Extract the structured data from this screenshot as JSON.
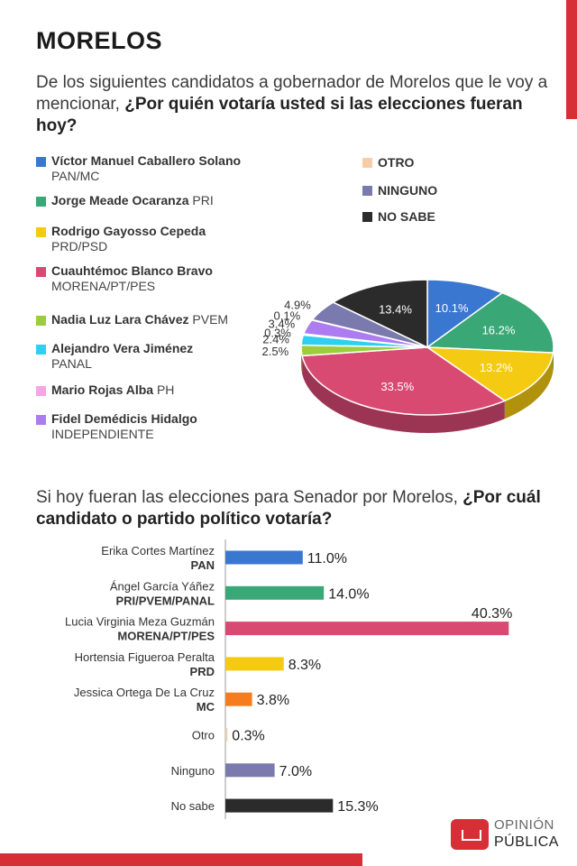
{
  "title": "MORELOS",
  "question1": {
    "pre": "De los siguientes candidatos a gobernador de Morelos que le voy a mencionar, ",
    "bold": "¿Por quién votaría usted si las elecciones fueran hoy?"
  },
  "question2": {
    "pre": "Si hoy fueran las elecciones para Senador por Morelos, ",
    "bold": "¿Por cuál candidato o partido político votaría?"
  },
  "legend_left": [
    {
      "name": "Víctor Manuel Caballero Solano",
      "party": "PAN/MC",
      "color": "#3a77d0",
      "two_line": true
    },
    {
      "name": "Jorge Meade Ocaranza",
      "party": "PRI",
      "color": "#3aa776",
      "two_line": false
    },
    {
      "name": "Rodrigo Gayosso Cepeda",
      "party": "PRD/PSD",
      "color": "#f4cb12",
      "two_line": true
    },
    {
      "name": "Cuauhtémoc Blanco Bravo",
      "party": "MORENA/PT/PES",
      "color": "#d94a73",
      "two_line": true
    },
    {
      "name": "Nadia Luz Lara Chávez",
      "party": "PVEM",
      "color": "#9ccd3c",
      "two_line": false
    },
    {
      "name": "Alejandro Vera Jiménez",
      "party": "PANAL",
      "color": "#2fd0ef",
      "two_line": true
    },
    {
      "name": "Mario Rojas Alba",
      "party": "PH",
      "color": "#f5a6e6",
      "two_line": false
    },
    {
      "name": "Fidel Demédicis Hidalgo",
      "party": "INDEPENDIENTE",
      "color": "#ad7cf0",
      "two_line": true
    }
  ],
  "legend_right": [
    {
      "name": "OTRO",
      "color": "#f7cda5"
    },
    {
      "name": "NINGUNO",
      "color": "#7a7aae"
    },
    {
      "name": "NO SABE",
      "color": "#2b2b2b"
    }
  ],
  "chart_data": [
    {
      "type": "pie",
      "slices": [
        {
          "label": "Víctor Manuel Caballero Solano",
          "value": 10.1,
          "display": "10.1%",
          "color": "#3a77d0"
        },
        {
          "label": "Jorge Meade Ocaranza",
          "value": 16.2,
          "display": "16.2%",
          "color": "#3aa776"
        },
        {
          "label": "Rodrigo Gayosso Cepeda",
          "value": 13.2,
          "display": "13.2%",
          "color": "#f4cb12"
        },
        {
          "label": "Cuauhtémoc Blanco Bravo",
          "value": 33.5,
          "display": "33.5%",
          "color": "#d94a73"
        },
        {
          "label": "Nadia Luz Lara Chávez",
          "value": 2.5,
          "display": "2.5%",
          "color": "#9ccd3c"
        },
        {
          "label": "Alejandro Vera Jiménez",
          "value": 2.4,
          "display": "2.4%",
          "color": "#2fd0ef"
        },
        {
          "label": "Mario Rojas Alba",
          "value": 0.3,
          "display": "0.3%",
          "color": "#f5a6e6"
        },
        {
          "label": "Fidel Demédicis Hidalgo",
          "value": 3.4,
          "display": "3.4%",
          "color": "#ad7cf0"
        },
        {
          "label": "OTRO",
          "value": 0.1,
          "display": "0.1%",
          "color": "#f7cda5"
        },
        {
          "label": "NINGUNO",
          "value": 4.9,
          "display": "4.9%",
          "color": "#7a7aae"
        },
        {
          "label": "NO SABE",
          "value": 13.4,
          "display": "13.4%",
          "color": "#2b2b2b"
        }
      ]
    },
    {
      "type": "bar",
      "orientation": "horizontal",
      "categories": [
        {
          "name": "Erika Cortes Martínez",
          "party": "PAN"
        },
        {
          "name": "Ángel García Yáñez",
          "party": "PRI/PVEM/PANAL"
        },
        {
          "name": "Lucia Virginia Meza Guzmán",
          "party": "MORENA/PT/PES"
        },
        {
          "name": "Hortensia Figueroa Peralta",
          "party": "PRD"
        },
        {
          "name": "Jessica Ortega De La Cruz",
          "party": "MC"
        },
        {
          "name": "Otro",
          "party": ""
        },
        {
          "name": "Ninguno",
          "party": ""
        },
        {
          "name": "No sabe",
          "party": ""
        }
      ],
      "values": [
        11.0,
        14.0,
        40.3,
        8.3,
        3.8,
        0.3,
        7.0,
        15.3
      ],
      "value_labels": [
        "11.0%",
        "14.0%",
        "40.3%",
        "8.3%",
        "3.8%",
        "0.3%",
        "7.0%",
        "15.3%"
      ],
      "colors": [
        "#3a77d0",
        "#3aa776",
        "#d94a73",
        "#f4cb12",
        "#f57d1f",
        "#f7cda5",
        "#7a7aae",
        "#2b2b2b"
      ]
    }
  ],
  "logo": {
    "line1": "OPINIÓN",
    "line2": "PÚBLICA"
  }
}
